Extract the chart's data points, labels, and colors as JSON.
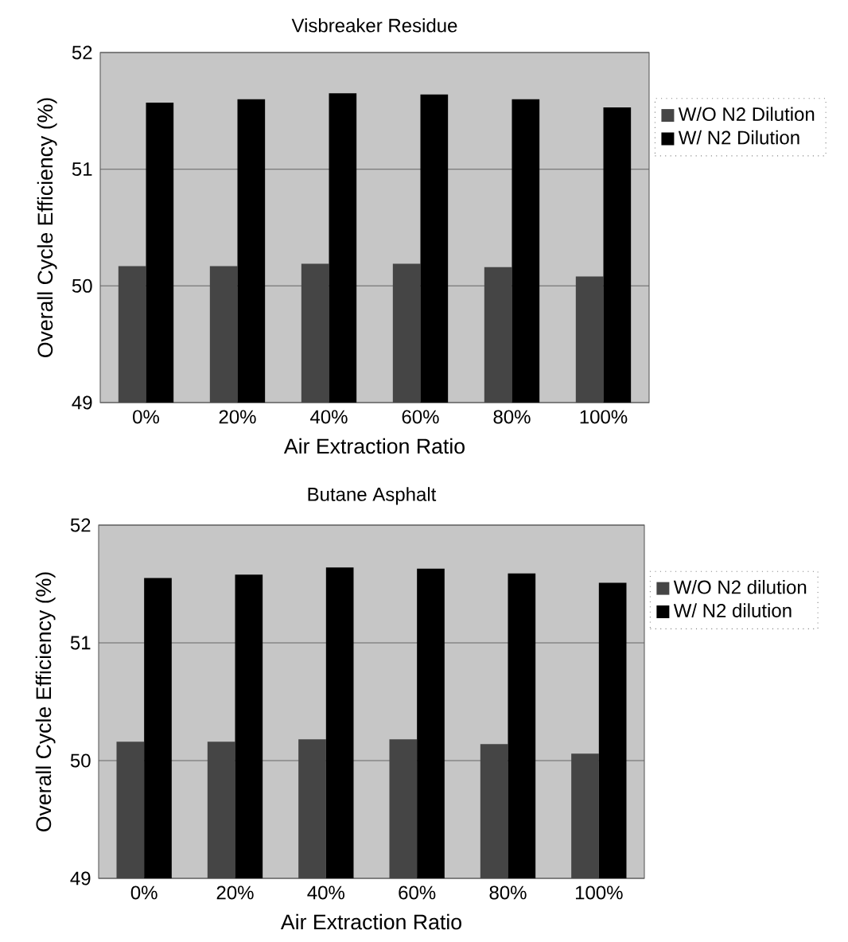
{
  "chart_data": [
    {
      "type": "bar",
      "title": "Visbreaker Residue",
      "xlabel": "Air Extraction Ratio",
      "ylabel": "Overall Cycle Efficiency (%)",
      "categories": [
        "0%",
        "20%",
        "40%",
        "60%",
        "80%",
        "100%"
      ],
      "series": [
        {
          "name": "W/O N2 Dilution",
          "color": "#454545",
          "values": [
            50.17,
            50.17,
            50.19,
            50.19,
            50.16,
            50.08
          ]
        },
        {
          "name": "W/ N2 Dilution",
          "color": "#000000",
          "values": [
            51.57,
            51.6,
            51.65,
            51.64,
            51.6,
            51.53
          ]
        }
      ],
      "ylim": [
        49,
        52
      ],
      "yticks": [
        49,
        50,
        51,
        52
      ],
      "grid": "y",
      "legend": "right"
    },
    {
      "type": "bar",
      "title": "Butane Asphalt",
      "xlabel": "Air Extraction Ratio",
      "ylabel": "Overall Cycle Efficiency (%)",
      "categories": [
        "0%",
        "20%",
        "40%",
        "60%",
        "80%",
        "100%"
      ],
      "series": [
        {
          "name": "W/O N2 dilution",
          "color": "#454545",
          "values": [
            50.16,
            50.16,
            50.18,
            50.18,
            50.14,
            50.06
          ]
        },
        {
          "name": "W/ N2 dilution",
          "color": "#000000",
          "values": [
            51.55,
            51.58,
            51.64,
            51.63,
            51.59,
            51.51
          ]
        }
      ],
      "ylim": [
        49,
        52
      ],
      "yticks": [
        49,
        50,
        51,
        52
      ],
      "grid": "y",
      "legend": "right"
    }
  ]
}
